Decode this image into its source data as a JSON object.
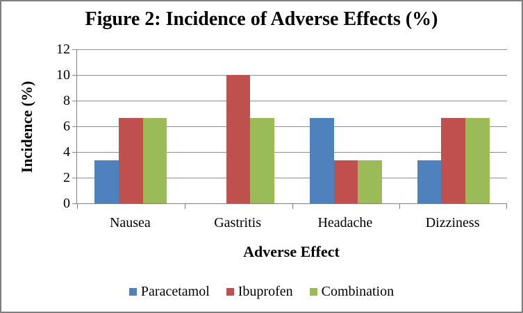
{
  "chart_data": {
    "type": "bar",
    "title": "Figure 2: Incidence of Adverse Effects (%)",
    "xlabel": "Adverse Effect",
    "ylabel": "Incidence (%)",
    "categories": [
      "Nausea",
      "Gastritis",
      "Headache",
      "Dizziness"
    ],
    "series": [
      {
        "name": "Paracetamol",
        "color": "#4F81BD",
        "values": [
          3.33,
          0,
          6.67,
          3.33
        ]
      },
      {
        "name": "Ibuprofen",
        "color": "#C0504D",
        "values": [
          6.67,
          10,
          3.33,
          6.67
        ]
      },
      {
        "name": "Combination",
        "color": "#9BBB59",
        "values": [
          6.67,
          6.67,
          3.33,
          6.67
        ]
      }
    ],
    "ylim": [
      0,
      12
    ],
    "yticks": [
      0,
      2,
      4,
      6,
      8,
      10,
      12
    ],
    "grid": true,
    "legend_position": "bottom"
  },
  "frame": {
    "border_color": "#7F7F7F",
    "grid_color": "#8C8C8C",
    "axis_color": "#808080"
  }
}
